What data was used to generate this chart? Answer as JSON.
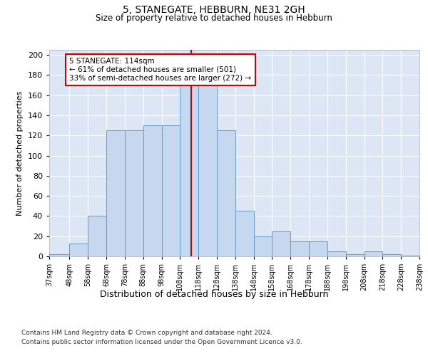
{
  "title": "5, STANEGATE, HEBBURN, NE31 2GH",
  "subtitle": "Size of property relative to detached houses in Hebburn",
  "xlabel": "Distribution of detached houses by size in Hebburn",
  "ylabel": "Number of detached properties",
  "footnote1": "Contains HM Land Registry data © Crown copyright and database right 2024.",
  "footnote2": "Contains public sector information licensed under the Open Government Licence v3.0.",
  "annotation_title": "5 STANEGATE: 114sqm",
  "annotation_line1": "← 61% of detached houses are smaller (501)",
  "annotation_line2": "33% of semi-detached houses are larger (272) →",
  "property_size": 114,
  "bar_left_edges": [
    37,
    48,
    58,
    68,
    78,
    88,
    98,
    108,
    118,
    128,
    138,
    148,
    158,
    168,
    178,
    188,
    198,
    208,
    218,
    228
  ],
  "bar_widths": [
    11,
    10,
    10,
    10,
    10,
    10,
    10,
    10,
    10,
    10,
    10,
    10,
    10,
    10,
    10,
    10,
    10,
    10,
    10,
    10
  ],
  "bar_heights": [
    2,
    13,
    40,
    125,
    125,
    130,
    130,
    185,
    185,
    125,
    45,
    20,
    25,
    15,
    15,
    5,
    2,
    5,
    2,
    1
  ],
  "bar_color": "#c5d8f0",
  "bar_edge_color": "#6699cc",
  "vline_color": "#cc0000",
  "vline_x": 114,
  "annotation_box_color": "#cc0000",
  "bg_color": "#dce6f5",
  "plot_bg_color": "#dce6f5",
  "ylim": [
    0,
    205
  ],
  "yticks": [
    0,
    20,
    40,
    60,
    80,
    100,
    120,
    140,
    160,
    180,
    200
  ],
  "tick_labels": [
    "37sqm",
    "48sqm",
    "58sqm",
    "68sqm",
    "78sqm",
    "88sqm",
    "98sqm",
    "108sqm",
    "118sqm",
    "128sqm",
    "138sqm",
    "148sqm",
    "158sqm",
    "168sqm",
    "178sqm",
    "188sqm",
    "198sqm",
    "208sqm",
    "218sqm",
    "228sqm",
    "238sqm"
  ]
}
